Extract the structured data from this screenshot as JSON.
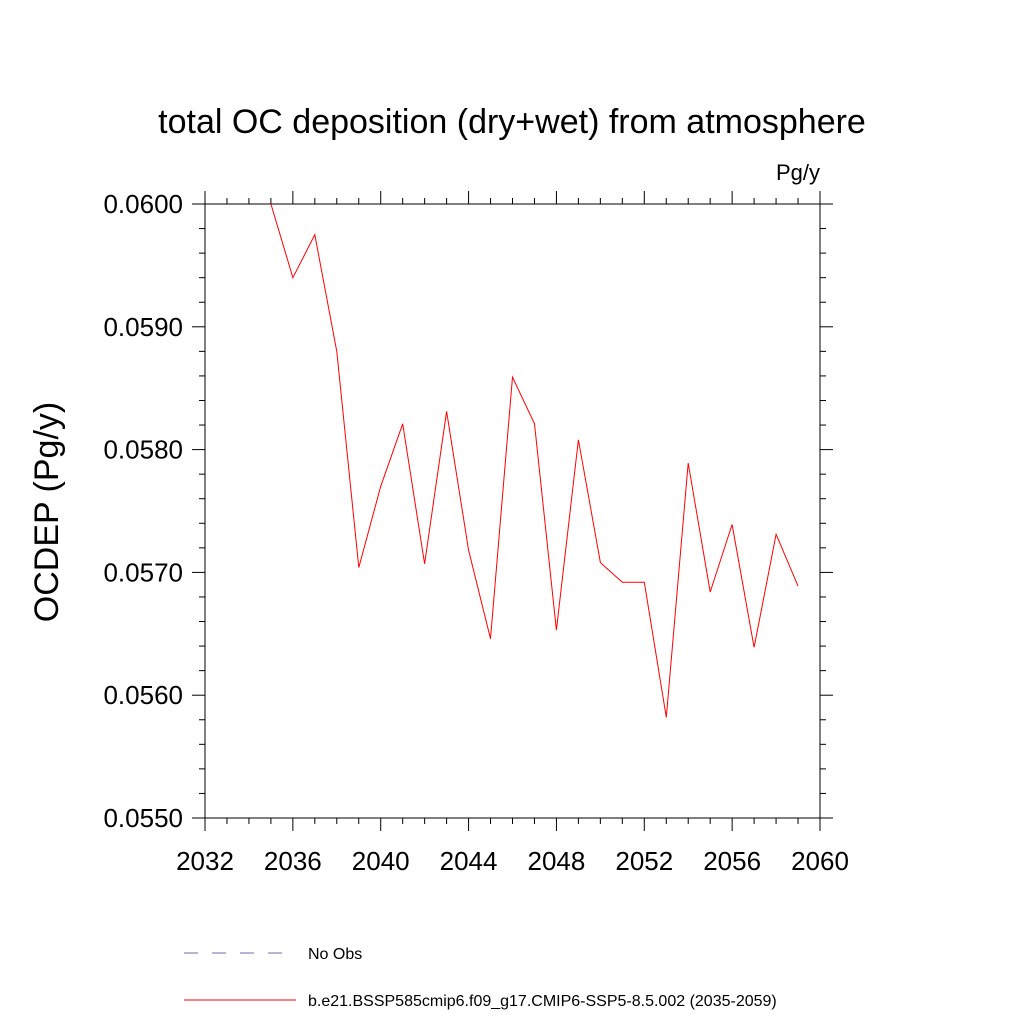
{
  "chart_data": {
    "type": "line",
    "title": "total OC deposition (dry+wet) from atmosphere",
    "units_label": "Pg/y",
    "ylabel": "OCDEP  (Pg/y)",
    "xlabel": "",
    "xlim": [
      2032,
      2060
    ],
    "ylim": [
      0.055,
      0.06
    ],
    "x_ticks": [
      2032,
      2036,
      2040,
      2044,
      2048,
      2052,
      2056,
      2060
    ],
    "x_tick_labels": [
      "2032",
      "2036",
      "2040",
      "2044",
      "2048",
      "2052",
      "2056",
      "2060"
    ],
    "y_ticks": [
      0.055,
      0.056,
      0.057,
      0.058,
      0.059,
      0.06
    ],
    "y_tick_labels": [
      "0.0550",
      "0.0560",
      "0.0570",
      "0.0580",
      "0.0590",
      "0.0600"
    ],
    "grid": false,
    "legend_position": "bottom-left",
    "series": [
      {
        "name": "No Obs",
        "style": "dashed",
        "color": "#6b6bb0",
        "x": [],
        "y": []
      },
      {
        "name": "b.e21.BSSP585cmip6.f09_g17.CMIP6-SSP5-8.5.002 (2035-2059)",
        "style": "solid",
        "color": "#ff0000",
        "x": [
          2035,
          2036,
          2037,
          2038,
          2039,
          2040,
          2041,
          2042,
          2043,
          2044,
          2045,
          2046,
          2047,
          2048,
          2049,
          2050,
          2051,
          2052,
          2053,
          2054,
          2055,
          2056,
          2057,
          2058,
          2059
        ],
        "y": [
          0.06,
          0.0594,
          0.05975,
          0.0588,
          0.05704,
          0.0577,
          0.05821,
          0.05707,
          0.05831,
          0.05718,
          0.05646,
          0.05859,
          0.05821,
          0.05653,
          0.05808,
          0.05708,
          0.05692,
          0.05692,
          0.05582,
          0.05789,
          0.05684,
          0.05739,
          0.05639,
          0.05731,
          0.05689
        ]
      }
    ]
  }
}
